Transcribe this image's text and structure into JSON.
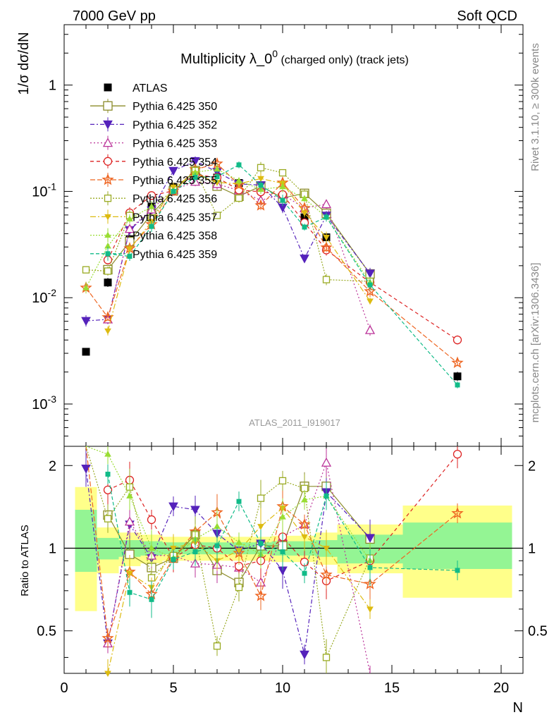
{
  "header": {
    "left": "7000 GeV pp",
    "right": "Soft QCD"
  },
  "side_labels": {
    "rivet": "Rivet 3.1.10, ≥ 300k events",
    "mcplots": "mcplots.cern.ch [arXiv:1306.3436]"
  },
  "chart_data": {
    "type": "scatter",
    "title_main": "Multiplicity λ_0",
    "title_sup": "0",
    "title_sub": " (charged only) (track jets)",
    "watermark": "ATLAS_2011_I919017",
    "ylabel_top": "1/σ dσ/dN",
    "ylabel_ratio": "Ratio to ATLAS",
    "xlabel": "N",
    "xlim": [
      0,
      21
    ],
    "ylim_top": [
      0.0004,
      3.7
    ],
    "ylog": true,
    "ylim_ratio": [
      0.35,
      2.35
    ],
    "x_ticks": [
      "0",
      "5",
      "10",
      "15",
      "20"
    ],
    "y_ticks_top": [
      "10^-3",
      "10^-2",
      "10^-1",
      "1"
    ],
    "y_ticks_ratio": [
      "0.5",
      "1",
      "2"
    ],
    "bands": [
      {
        "x0": 0.5,
        "x1": 1.5,
        "y_yel": [
          0.59,
          1.67
        ],
        "y_grn": [
          0.82,
          1.38
        ]
      },
      {
        "x0": 1.5,
        "x1": 2.5,
        "y_yel": [
          0.81,
          1.19
        ],
        "y_grn": [
          0.91,
          1.09
        ]
      },
      {
        "x0": 2.5,
        "x1": 3.5,
        "y_yel": [
          0.86,
          1.14
        ],
        "y_grn": [
          0.93,
          1.07
        ]
      },
      {
        "x0": 3.5,
        "x1": 4.5,
        "y_yel": [
          0.88,
          1.12
        ],
        "y_grn": [
          0.94,
          1.06
        ]
      },
      {
        "x0": 4.5,
        "x1": 9.5,
        "y_yel": [
          0.9,
          1.1
        ],
        "y_grn": [
          0.95,
          1.05
        ]
      },
      {
        "x0": 9.5,
        "x1": 11.5,
        "y_yel": [
          0.89,
          1.11
        ],
        "y_grn": [
          0.94,
          1.06
        ]
      },
      {
        "x0": 11.5,
        "x1": 12.5,
        "y_yel": [
          0.87,
          1.14
        ],
        "y_grn": [
          0.93,
          1.07
        ]
      },
      {
        "x0": 12.5,
        "x1": 15.5,
        "y_yel": [
          0.81,
          1.22
        ],
        "y_grn": [
          0.88,
          1.12
        ]
      },
      {
        "x0": 15.5,
        "x1": 20.5,
        "y_yel": [
          0.66,
          1.43
        ],
        "y_grn": [
          0.84,
          1.24
        ]
      }
    ],
    "series": [
      {
        "name": "ATLAS",
        "color": "#000000",
        "marker": "square-filled",
        "dash": "none",
        "x": [
          1,
          2,
          3,
          4,
          5,
          6,
          7,
          8,
          9,
          10,
          11,
          12,
          14,
          18
        ],
        "y": [
          0.0031,
          0.0139,
          0.0355,
          0.072,
          0.11,
          0.14,
          0.135,
          0.12,
          0.11,
          0.085,
          0.057,
          0.037,
          0.0155,
          0.00182
        ],
        "ratio": [
          1,
          1,
          1,
          1,
          1,
          1,
          1,
          1,
          1,
          1,
          1,
          1,
          1,
          1
        ]
      },
      {
        "name": "Pythia 6.425 350",
        "color": "#8b8b2a",
        "marker": "square-open",
        "dash": "none",
        "x": [
          2,
          3,
          4,
          5,
          6,
          7,
          8,
          9,
          10,
          11,
          12,
          14
        ],
        "ratio": [
          1.32,
          0.95,
          0.85,
          0.92,
          1.12,
          0.83,
          0.75,
          1.02,
          1.02,
          1.68,
          1.68,
          1.08
        ]
      },
      {
        "name": "Pythia 6.425 352",
        "color": "#5522bb",
        "marker": "tri-down-filled",
        "dash": "6,3,2,3",
        "x": [
          1,
          2,
          3,
          4,
          5,
          6,
          7,
          8,
          9,
          10,
          11,
          12,
          14
        ],
        "ratio": [
          1.95,
          0.45,
          1.22,
          0.92,
          1.42,
          1.38,
          1.13,
          0.98,
          1.04,
          0.83,
          0.41,
          1.6,
          1.09
        ]
      },
      {
        "name": "Pythia 6.425 353",
        "color": "#bb3399",
        "marker": "tri-up-open",
        "dash": "2,3",
        "x": [
          2,
          3,
          4,
          5,
          6,
          7,
          8,
          9,
          10,
          11,
          12,
          14
        ],
        "ratio": [
          0.45,
          1.25,
          0.94,
          0.94,
          0.88,
          0.87,
          0.85,
          0.75,
          1.1,
          1.22,
          2.05,
          0.32
        ]
      },
      {
        "name": "Pythia 6.425 354",
        "color": "#dd2222",
        "marker": "circle-open",
        "dash": "5,4",
        "x": [
          2,
          3,
          4,
          5,
          6,
          7,
          8,
          9,
          10,
          11,
          12,
          14,
          18
        ],
        "ratio": [
          1.63,
          1.77,
          1.27,
          0.92,
          1.03,
          1.0,
          0.86,
          0.9,
          1.1,
          0.89,
          0.76,
          0.9,
          2.2
        ]
      },
      {
        "name": "Pythia 6.425 355",
        "color": "#ee6622",
        "marker": "star",
        "dash": "7,3",
        "x": [
          1,
          2,
          3,
          4,
          5,
          6,
          7,
          8,
          9,
          10,
          11,
          12,
          14,
          18
        ],
        "ratio": [
          4.0,
          0.47,
          0.82,
          0.68,
          0.92,
          1.15,
          1.35,
          0.96,
          0.67,
          1.42,
          1.22,
          0.8,
          0.74,
          1.34
        ]
      },
      {
        "name": "Pythia 6.425 356",
        "color": "#99aa22",
        "marker": "square-open-small",
        "dash": "2,2",
        "x": [
          1,
          2,
          3,
          4,
          5,
          6,
          7,
          8,
          9,
          10,
          11,
          12,
          14
        ],
        "ratio": [
          5.9,
          1.28,
          1.67,
          0.78,
          0.94,
          1.12,
          0.44,
          0.72,
          1.52,
          1.76,
          1.65,
          0.4,
          0.92
        ]
      },
      {
        "name": "Pythia 6.425 357",
        "color": "#ddbb11",
        "marker": "tri-down-small",
        "dash": "8,3,2,3",
        "x": [
          2,
          3,
          4,
          5,
          6,
          7,
          8,
          9,
          10,
          11,
          12,
          14
        ],
        "ratio": [
          0.35,
          0.81,
          0.72,
          1.0,
          1.05,
          0.9,
          0.98,
          1.2,
          1.4,
          1.1,
          1.0,
          0.6
        ]
      },
      {
        "name": "Pythia 6.425 358",
        "color": "#99dd33",
        "marker": "tri-up-small",
        "dash": "2,2",
        "x": [
          1,
          2,
          3,
          4,
          5,
          6,
          7,
          8,
          9,
          10,
          11,
          12,
          14
        ],
        "ratio": [
          4.0,
          2.2,
          1.55,
          1.0,
          0.92,
          1.08,
          1.2,
          1.05,
          0.95,
          1.3,
          1.5,
          1.55,
          0.9
        ]
      },
      {
        "name": "Pythia 6.425 359",
        "color": "#11bb88",
        "marker": "circle-small-filled",
        "dash": "5,3",
        "x": [
          2,
          3,
          4,
          5,
          6,
          7,
          8,
          9,
          10,
          11,
          12,
          14,
          18
        ],
        "ratio": [
          1.86,
          0.69,
          0.65,
          0.91,
          0.97,
          1.02,
          1.48,
          1.04,
          0.97,
          0.81,
          1.55,
          0.85,
          0.83
        ]
      }
    ]
  }
}
